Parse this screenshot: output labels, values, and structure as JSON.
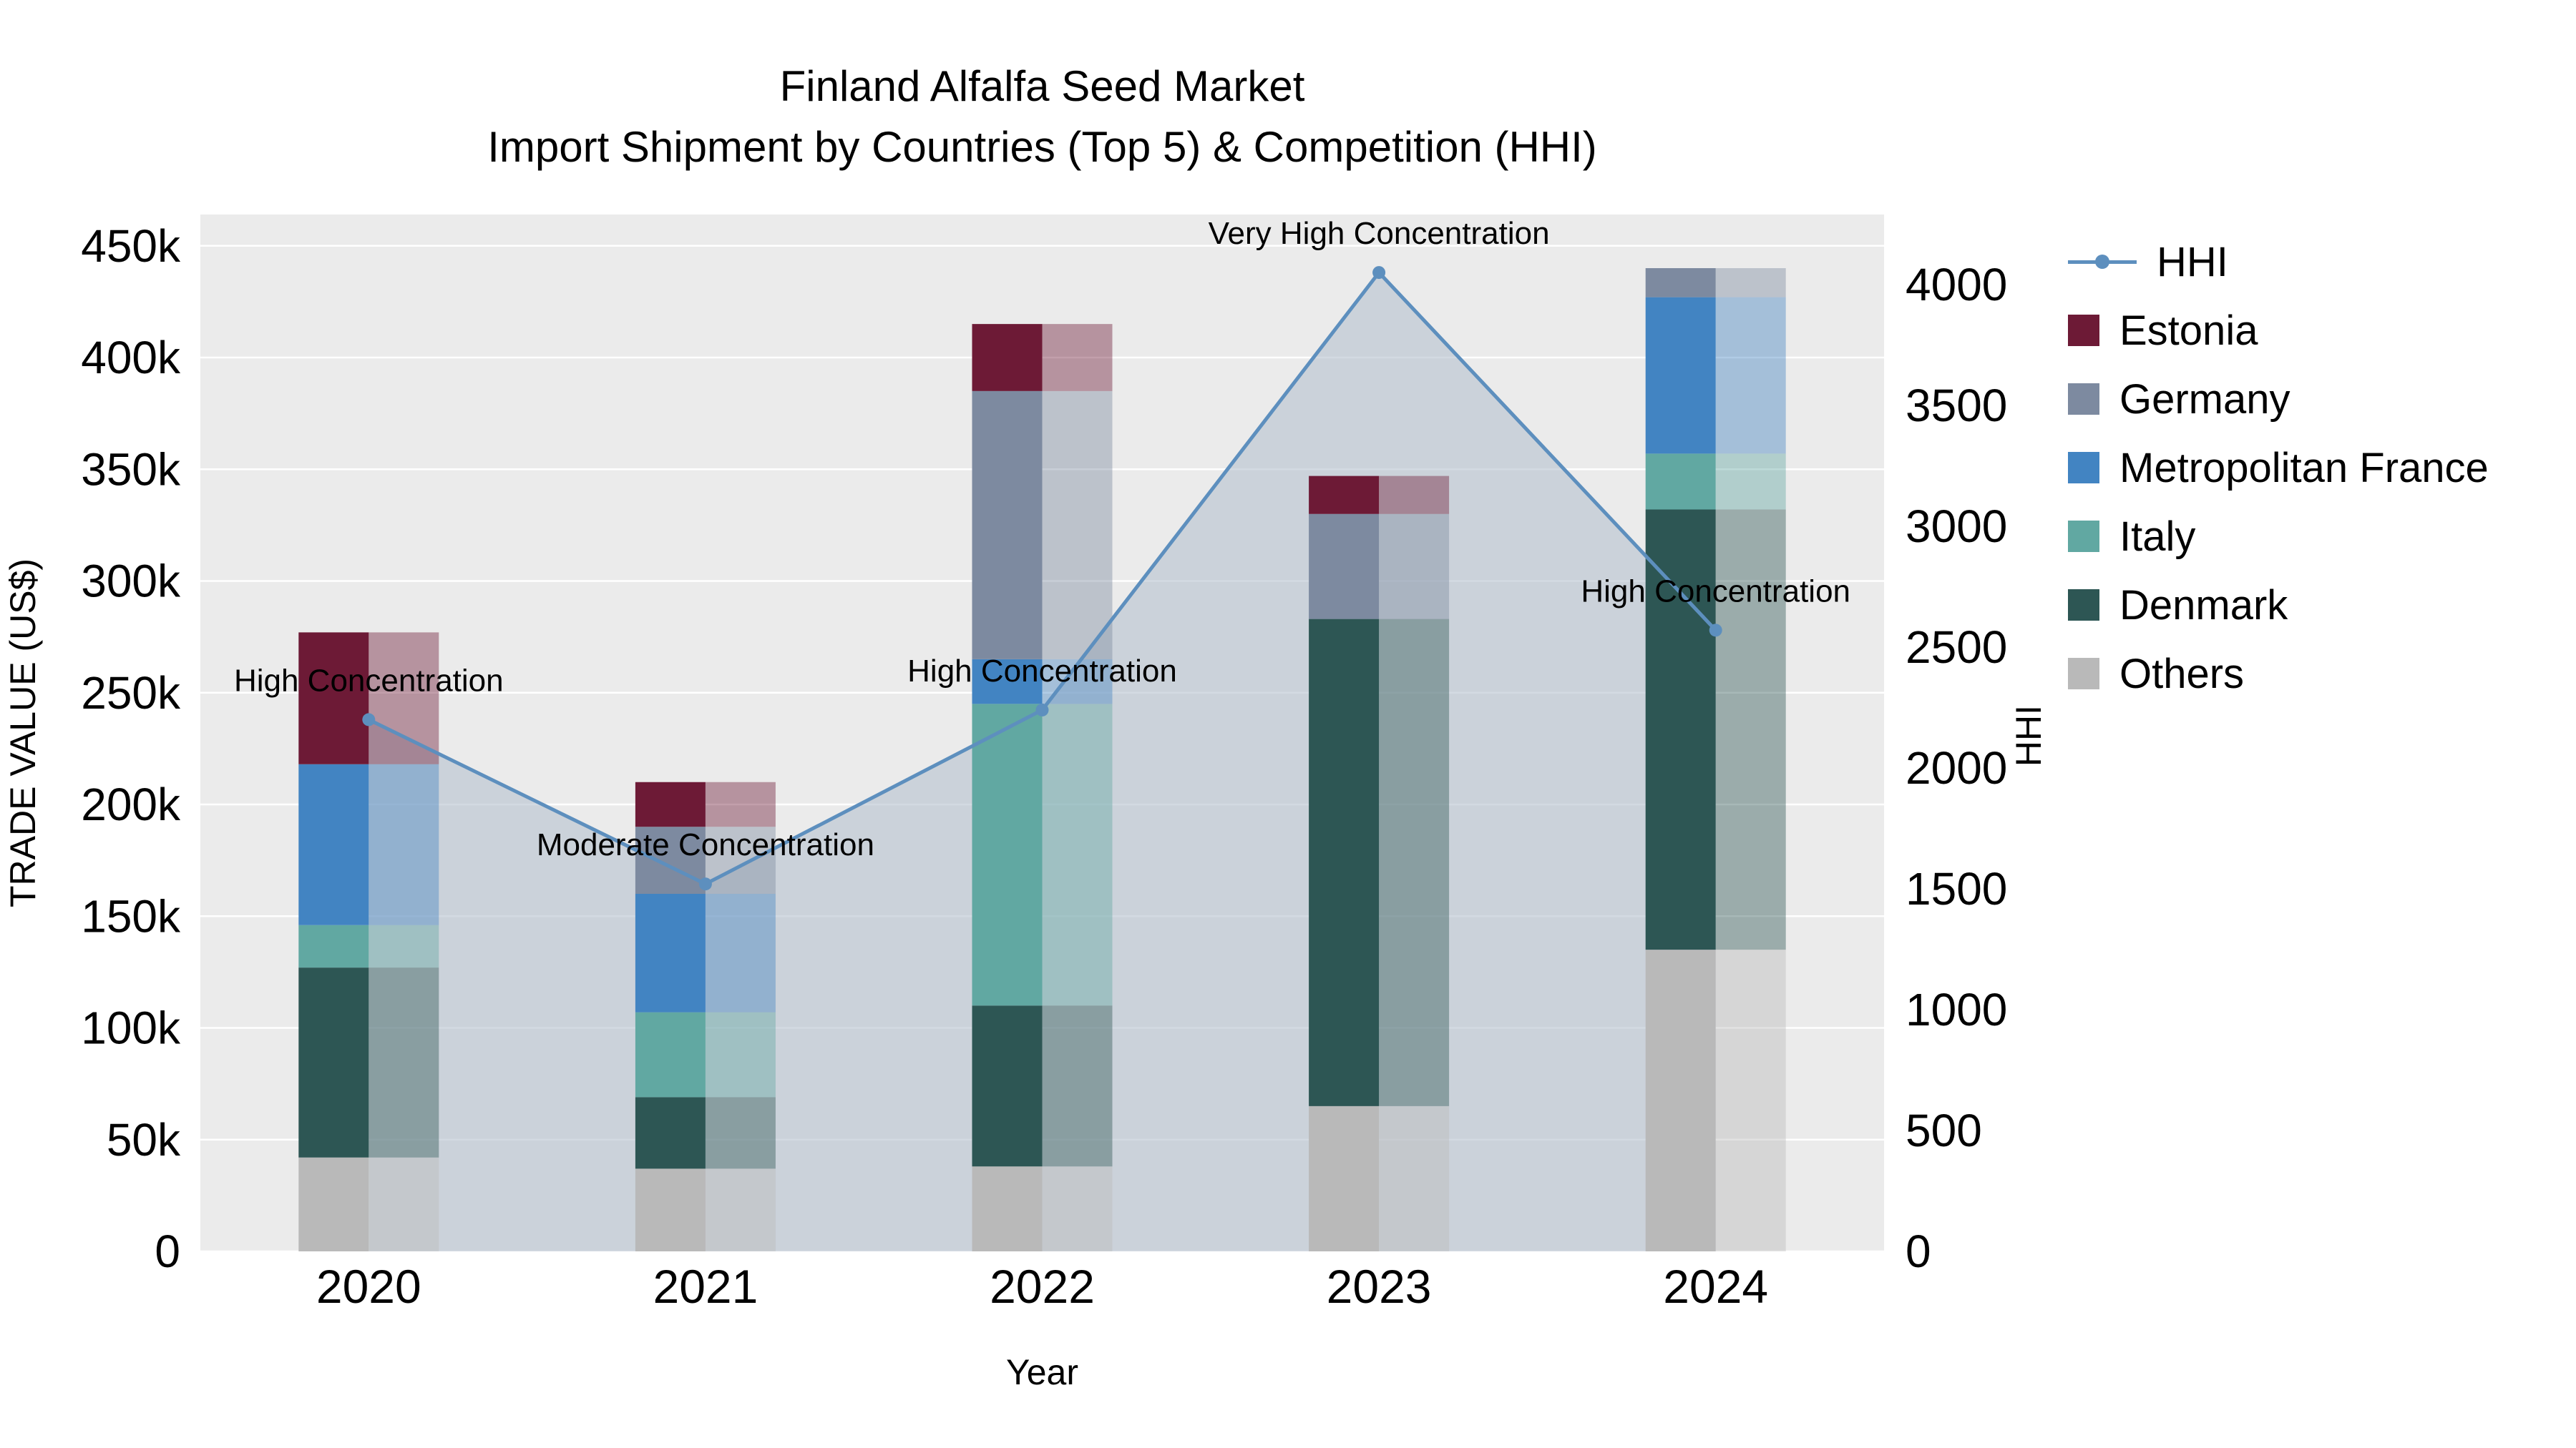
{
  "title": {
    "line1": "Finland Alfalfa Seed Market",
    "line2": "Import Shipment by Countries (Top 5) & Competition (HHI)"
  },
  "axes": {
    "x_title": "Year",
    "y_left_title": "TRADE VALUE (US$)",
    "y_right_title": "HHI",
    "y_left_tick_labels": [
      "0",
      "50k",
      "100k",
      "150k",
      "200k",
      "250k",
      "300k",
      "350k",
      "400k",
      "450k"
    ],
    "y_left_tick_values": [
      0,
      50000,
      100000,
      150000,
      200000,
      250000,
      300000,
      350000,
      400000,
      450000
    ],
    "y_left_max": 464000,
    "y_right_tick_labels": [
      "0",
      "500",
      "1000",
      "1500",
      "2000",
      "2500",
      "3000",
      "3500",
      "4000"
    ],
    "y_right_tick_values": [
      0,
      500,
      1000,
      1500,
      2000,
      2500,
      3000,
      3500,
      4000
    ],
    "y_right_max": 4290
  },
  "chart_data": {
    "type": "bar",
    "subtype": "stacked-bars-with-line-overlay",
    "categories": [
      "2020",
      "2021",
      "2022",
      "2023",
      "2024"
    ],
    "stack_order_note": "series listed bottom-to-top of stack, values in US$",
    "series": [
      {
        "name": "Others",
        "color": "#b9b9b9",
        "values": [
          42000,
          37000,
          38000,
          65000,
          135000
        ]
      },
      {
        "name": "Denmark",
        "color": "#2d5654",
        "values": [
          85000,
          32000,
          72000,
          218000,
          197000
        ]
      },
      {
        "name": "Italy",
        "color": "#61a8a2",
        "values": [
          19000,
          38000,
          135000,
          0,
          25000
        ]
      },
      {
        "name": "Metropolitan France",
        "color": "#4284c2",
        "values": [
          72000,
          53000,
          20000,
          0,
          70000
        ]
      },
      {
        "name": "Germany",
        "color": "#7d8aa0",
        "values": [
          0,
          30000,
          120000,
          47000,
          13000
        ]
      },
      {
        "name": "Estonia",
        "color": "#6d1a36",
        "values": [
          59000,
          20000,
          30000,
          17000,
          0
        ]
      }
    ],
    "hhi": {
      "name": "HHI",
      "line_color": "#5d8fbe",
      "area_fill_color": "#b6c2cf",
      "values": [
        2200,
        1520,
        2240,
        4050,
        2570
      ],
      "annotations": [
        {
          "index": 0,
          "text": "High Concentration"
        },
        {
          "index": 1,
          "text": "Moderate Concentration"
        },
        {
          "index": 2,
          "text": "High Concentration"
        },
        {
          "index": 3,
          "text": "Very High Concentration"
        },
        {
          "index": 4,
          "text": "High Concentration"
        }
      ]
    },
    "ylabel_left": "TRADE VALUE (US$)",
    "ylabel_right": "HHI",
    "xlabel": "Year",
    "ylim_left": [
      0,
      464000
    ],
    "ylim_right": [
      0,
      4290
    ],
    "plot_bg": "#ebebeb",
    "grid_color": "#ffffff",
    "legend_position": "right"
  },
  "legend": {
    "items": [
      {
        "label": "HHI",
        "type": "line",
        "color": "#5d8fbe"
      },
      {
        "label": "Estonia",
        "type": "square",
        "color": "#6d1a36"
      },
      {
        "label": "Germany",
        "type": "square",
        "color": "#7d8aa0"
      },
      {
        "label": "Metropolitan France",
        "type": "square",
        "color": "#4284c2"
      },
      {
        "label": "Italy",
        "type": "square",
        "color": "#61a8a2"
      },
      {
        "label": "Denmark",
        "type": "square",
        "color": "#2d5654"
      },
      {
        "label": "Others",
        "type": "square",
        "color": "#b9b9b9"
      }
    ]
  }
}
